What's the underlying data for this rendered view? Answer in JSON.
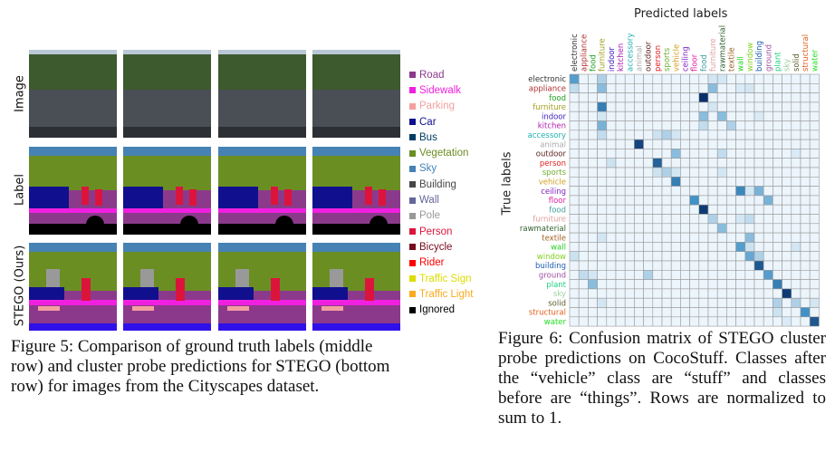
{
  "figure5": {
    "row_labels": [
      "Image",
      "Label",
      "STEGO (Ours)"
    ],
    "legend": [
      {
        "label": "Road",
        "color": "#8b3a8b"
      },
      {
        "label": "Sidewalk",
        "color": "#f020e0"
      },
      {
        "label": "Parking",
        "color": "#f4a0a0"
      },
      {
        "label": "Car",
        "color": "#10108e"
      },
      {
        "label": "Bus",
        "color": "#003c64"
      },
      {
        "label": "Vegetation",
        "color": "#6b8e23"
      },
      {
        "label": "Sky",
        "color": "#4682b4"
      },
      {
        "label": "Building",
        "color": "#464646"
      },
      {
        "label": "Wall",
        "color": "#66669c"
      },
      {
        "label": "Pole",
        "color": "#999999"
      },
      {
        "label": "Person",
        "color": "#dc143c"
      },
      {
        "label": "Bicycle",
        "color": "#770b20"
      },
      {
        "label": "Rider",
        "color": "#ff0000"
      },
      {
        "label": "Traffic Sign",
        "color": "#dcdc00"
      },
      {
        "label": "Traffic Light",
        "color": "#faaa1e"
      },
      {
        "label": "Ignored",
        "color": "#000000"
      }
    ],
    "caption": "Figure 5: Comparison of ground truth labels (middle row) and cluster probe predictions for STEGO (bottom row) for images from the Cityscapes dataset."
  },
  "figure6": {
    "caption": "Figure 6: Confusion matrix of STEGO cluster probe predictions on CocoStuff. Classes after the “vehicle” class are “stuff” and classes before are “things”. Rows are normalized to sum to 1.",
    "chart_data": {
      "type": "heatmap",
      "title": "Predicted labels",
      "xlabel": "Predicted labels",
      "ylabel": "True labels",
      "classes": [
        "electronic",
        "appliance",
        "food",
        "furniture",
        "indoor",
        "kitchen",
        "accessory",
        "animal",
        "outdoor",
        "person",
        "sports",
        "vehicle",
        "ceiling",
        "floor",
        "food",
        "furniture",
        "rawmaterial",
        "textile",
        "wall",
        "window",
        "building",
        "ground",
        "plant",
        "sky",
        "solid",
        "structural",
        "water"
      ],
      "class_colors": [
        "#333333",
        "#b03030",
        "#22a022",
        "#a0a020",
        "#4020c0",
        "#b020b0",
        "#20b0b0",
        "#aaaaaa",
        "#602020",
        "#e02020",
        "#70b030",
        "#d0a020",
        "#8020c0",
        "#e020a0",
        "#40a0a0",
        "#e0a0a0",
        "#306030",
        "#a06020",
        "#20d020",
        "#80d020",
        "#2060b0",
        "#a050a0",
        "#20d080",
        "#a0d0a0",
        "#606030",
        "#e06020",
        "#20e020"
      ],
      "background_value": 0.03,
      "cells": [
        [
          0,
          0,
          0.45
        ],
        [
          0,
          3,
          0.2
        ],
        [
          0,
          15,
          0.1
        ],
        [
          0,
          16,
          0.1
        ],
        [
          1,
          0,
          0.15
        ],
        [
          1,
          3,
          0.3
        ],
        [
          1,
          15,
          0.3
        ],
        [
          1,
          18,
          0.08
        ],
        [
          1,
          19,
          0.1
        ],
        [
          2,
          14,
          1.0
        ],
        [
          3,
          3,
          0.6
        ],
        [
          3,
          15,
          0.1
        ],
        [
          4,
          3,
          0.1
        ],
        [
          4,
          14,
          0.3
        ],
        [
          4,
          16,
          0.3
        ],
        [
          4,
          20,
          0.08
        ],
        [
          5,
          3,
          0.35
        ],
        [
          5,
          14,
          0.15
        ],
        [
          5,
          17,
          0.2
        ],
        [
          6,
          3,
          0.15
        ],
        [
          6,
          9,
          0.12
        ],
        [
          6,
          10,
          0.2
        ],
        [
          6,
          11,
          0.1
        ],
        [
          7,
          7,
          0.9
        ],
        [
          8,
          11,
          0.3
        ],
        [
          8,
          16,
          0.15
        ],
        [
          8,
          24,
          0.08
        ],
        [
          9,
          4,
          0.12
        ],
        [
          9,
          9,
          0.75
        ],
        [
          10,
          9,
          0.12
        ],
        [
          10,
          10,
          0.2
        ],
        [
          10,
          11,
          0.1
        ],
        [
          10,
          16,
          0.1
        ],
        [
          11,
          11,
          0.6
        ],
        [
          12,
          18,
          0.55
        ],
        [
          12,
          19,
          0.1
        ],
        [
          12,
          20,
          0.35
        ],
        [
          13,
          13,
          0.5
        ],
        [
          13,
          21,
          0.35
        ],
        [
          14,
          14,
          0.95
        ],
        [
          15,
          15,
          0.2
        ],
        [
          15,
          18,
          0.1
        ],
        [
          15,
          19,
          0.15
        ],
        [
          16,
          16,
          0.3
        ],
        [
          17,
          3,
          0.1
        ],
        [
          17,
          19,
          0.3
        ],
        [
          18,
          18,
          0.45
        ],
        [
          18,
          19,
          0.12
        ],
        [
          18,
          24,
          0.1
        ],
        [
          19,
          0,
          0.12
        ],
        [
          19,
          19,
          0.4
        ],
        [
          19,
          20,
          0.2
        ],
        [
          20,
          20,
          0.8
        ],
        [
          21,
          1,
          0.15
        ],
        [
          21,
          2,
          0.1
        ],
        [
          21,
          8,
          0.2
        ],
        [
          21,
          21,
          0.45
        ],
        [
          22,
          2,
          0.3
        ],
        [
          22,
          22,
          0.6
        ],
        [
          23,
          23,
          0.95
        ],
        [
          24,
          3,
          0.1
        ],
        [
          24,
          22,
          0.2
        ],
        [
          24,
          24,
          0.2
        ],
        [
          24,
          26,
          0.1
        ],
        [
          25,
          22,
          0.12
        ],
        [
          25,
          25,
          0.5
        ],
        [
          26,
          23,
          0.08
        ],
        [
          26,
          26,
          0.8
        ]
      ]
    }
  }
}
